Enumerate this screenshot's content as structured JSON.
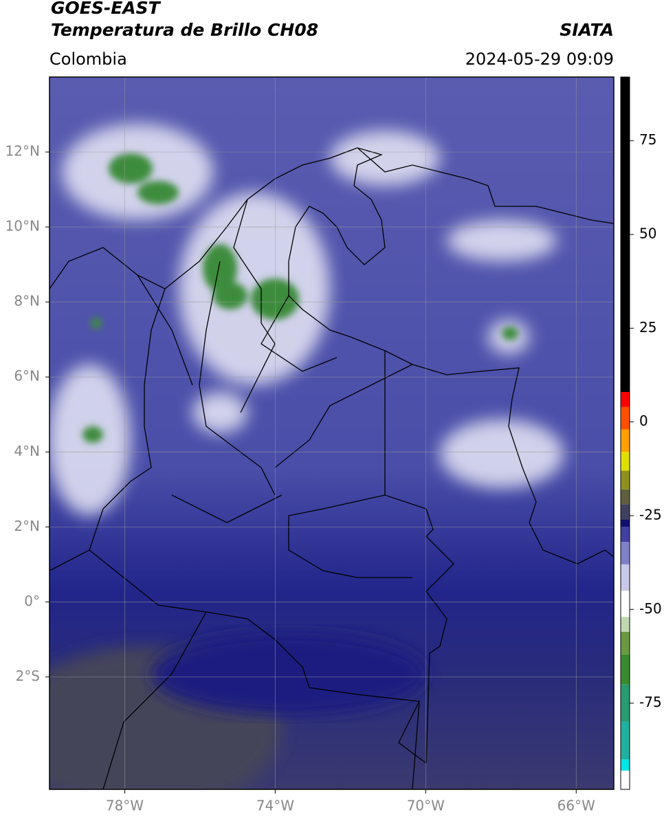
{
  "header": {
    "title": "GOES-EAST",
    "subtitle": "Temperatura de Brillo CH08",
    "source": "SIATA",
    "region": "Colombia",
    "datetime": "2024-05-29 09:09"
  },
  "map": {
    "xlim": [
      -80,
      -65
    ],
    "ylim": [
      -5,
      14
    ],
    "grid": true,
    "xticks": [
      {
        "value": -78,
        "label": "78°W"
      },
      {
        "value": -74,
        "label": "74°W"
      },
      {
        "value": -70,
        "label": "70°W"
      },
      {
        "value": -66,
        "label": "66°W"
      }
    ],
    "yticks": [
      {
        "value": 12,
        "label": "12°N"
      },
      {
        "value": 10,
        "label": "10°N"
      },
      {
        "value": 8,
        "label": "8°N"
      },
      {
        "value": 6,
        "label": "6°N"
      },
      {
        "value": 4,
        "label": "4°N"
      },
      {
        "value": 2,
        "label": "2°N"
      },
      {
        "value": 0,
        "label": "0°"
      },
      {
        "value": -2,
        "label": "2°S"
      }
    ]
  },
  "colorbar": {
    "lim": [
      -98,
      92
    ],
    "ticks": [
      75,
      50,
      25,
      0,
      -25,
      -50,
      -75
    ],
    "stops": [
      {
        "value": -98,
        "color": "#ffffff"
      },
      {
        "value": -93,
        "color": "#00e5e5"
      },
      {
        "value": -90,
        "color": "#20b0a0"
      },
      {
        "value": -80,
        "color": "#2a9a70"
      },
      {
        "value": -70,
        "color": "#3a8a30"
      },
      {
        "value": -62,
        "color": "#6a9a40"
      },
      {
        "value": -56,
        "color": "#c0d8b0"
      },
      {
        "value": -52,
        "color": "#ffffff"
      },
      {
        "value": -45,
        "color": "#c8c8e8"
      },
      {
        "value": -38,
        "color": "#8080c8"
      },
      {
        "value": -32,
        "color": "#4040a0"
      },
      {
        "value": -28,
        "color": "#101070"
      },
      {
        "value": -26,
        "color": "#404060"
      },
      {
        "value": -22,
        "color": "#606040"
      },
      {
        "value": -18,
        "color": "#909020"
      },
      {
        "value": -13,
        "color": "#e0e000"
      },
      {
        "value": -8,
        "color": "#ffa000"
      },
      {
        "value": -2,
        "color": "#ff5000"
      },
      {
        "value": 4,
        "color": "#ff0000"
      },
      {
        "value": 8,
        "color": "#000000"
      }
    ]
  }
}
